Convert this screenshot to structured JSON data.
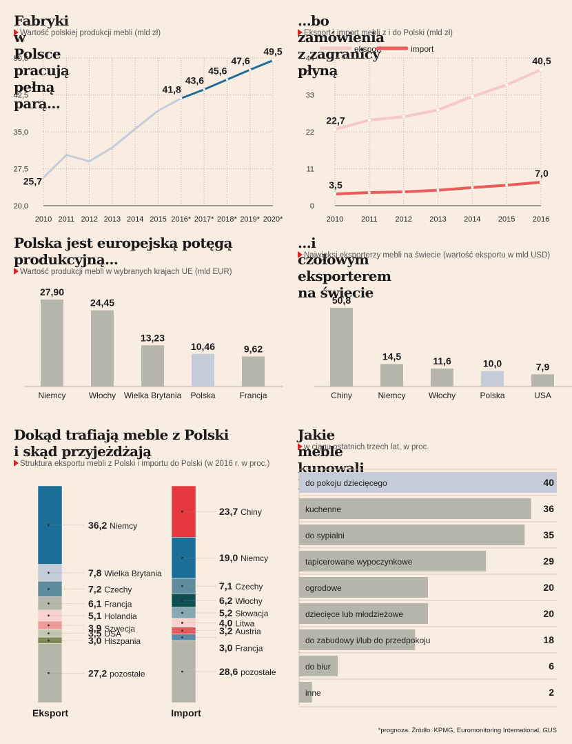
{
  "chart_data": [
    {
      "type": "line",
      "title": "Fabryki w Polsce pracują pełną parą...",
      "subtitle": "Wartość polskiej produkcji mebli (mld zł)",
      "x": [
        "2010",
        "2011",
        "2012",
        "2013",
        "2014",
        "2015",
        "2016*",
        "2017*",
        "2018*",
        "2019*",
        "2020*"
      ],
      "series": [
        {
          "values": [
            25.7,
            30.3,
            29.0,
            31.8,
            35.6,
            39.3,
            41.8,
            43.6,
            45.6,
            47.6,
            49.5
          ],
          "labels": [
            "25,7",
            "",
            "",
            "",
            "",
            "",
            "41,8",
            "43,6",
            "45,6",
            "47,6",
            "49,5"
          ],
          "color_actual": "#c5cbd9",
          "color_forecast": "#1f6e99",
          "forecast_from_index": 6
        }
      ],
      "yticks": [
        "20,0",
        "27,5",
        "35,0",
        "42,5",
        "50,0"
      ],
      "ylim": [
        20,
        50
      ],
      "grid": true
    },
    {
      "type": "line",
      "title": "...bo zamówienia z zagranicy płyną",
      "subtitle": "Eksport i import mebli z i do Polski (mld zł)",
      "x": [
        "2010",
        "2011",
        "2012",
        "2013",
        "2014",
        "2015",
        "2016"
      ],
      "series": [
        {
          "name": "eksport",
          "values": [
            22.7,
            25.5,
            26.5,
            28.5,
            32.5,
            36.0,
            40.5
          ],
          "labels": [
            "22,7",
            "",
            "",
            "",
            "",
            "",
            "40,5"
          ],
          "color": "#f6c9c6"
        },
        {
          "name": "import",
          "values": [
            3.5,
            3.9,
            4.1,
            4.6,
            5.4,
            6.1,
            7.0
          ],
          "labels": [
            "3,5",
            "",
            "",
            "",
            "",
            "",
            "7,0"
          ],
          "color": "#ea5b5a"
        }
      ],
      "yticks": [
        "0",
        "11",
        "22",
        "33",
        "44"
      ],
      "ylim": [
        0,
        44
      ],
      "grid": true,
      "legend": "top-left"
    },
    {
      "type": "bar",
      "title": "Polska jest europejską potęgą produkcyjną...",
      "subtitle": "Wartość produkcji mebli w wybranych krajach UE (mld EUR)",
      "categories": [
        "Niemcy",
        "Włochy",
        "Wielka Brytania",
        "Polska",
        "Francja"
      ],
      "values": [
        27.9,
        24.45,
        13.23,
        10.46,
        9.62
      ],
      "labels": [
        "27,90",
        "24,45",
        "13,23",
        "10,46",
        "9,62"
      ],
      "highlight": "Polska"
    },
    {
      "type": "bar",
      "title": "...i czołowym eksporterem na świecie",
      "subtitle": "Najwięksi eksporterzy mebli na świecie (wartość eksportu w mld USD)",
      "categories": [
        "Chiny",
        "Niemcy",
        "Włochy",
        "Polska",
        "USA"
      ],
      "values": [
        50.8,
        14.5,
        11.6,
        10.0,
        7.9
      ],
      "labels": [
        "50,8",
        "14,5",
        "11,6",
        "10,0",
        "7,9"
      ],
      "highlight": "Polska"
    },
    {
      "type": "bar",
      "stacked": true,
      "title": "Dokąd trafiają meble z Polski i skąd przyjeżdżają",
      "subtitle": "Struktura eksportu mebli z Polski i importu do Polski (w 2016 r. w proc.)",
      "stacks": [
        {
          "name": "Eksport",
          "segments": [
            {
              "label": "Niemcy",
              "value": 36.2,
              "text": "36,2",
              "color": "#1a6e98"
            },
            {
              "label": "Wielka Brytania",
              "value": 7.8,
              "text": "7,8",
              "color": "#c5cbd9"
            },
            {
              "label": "Czechy",
              "value": 7.2,
              "text": "7,2",
              "color": "#5f8c9d"
            },
            {
              "label": "Francja",
              "value": 6.1,
              "text": "6,1",
              "color": "#b7b6ab"
            },
            {
              "label": "Holandia",
              "value": 5.1,
              "text": "5,1",
              "color": "#f8d2d0"
            },
            {
              "label": "Szwecja",
              "value": 3.9,
              "text": "3,9",
              "color": "#ef9b99"
            },
            {
              "label": "USA",
              "value": 3.5,
              "text": "3,5",
              "color": "#c2c9b0"
            },
            {
              "label": "Hiszpania",
              "value": 3.0,
              "text": "3,0",
              "color": "#7f8957"
            },
            {
              "label": "pozostałe",
              "value": 27.2,
              "text": "27,2",
              "color": "#b7b6ab"
            }
          ]
        },
        {
          "name": "Import",
          "segments": [
            {
              "label": "Chiny",
              "value": 23.7,
              "text": "23,7",
              "color": "#e5373d"
            },
            {
              "label": "Niemcy",
              "value": 19.0,
              "text": "19,0",
              "color": "#1a6e98"
            },
            {
              "label": "Czechy",
              "value": 7.1,
              "text": "7,1",
              "color": "#5f8c9d"
            },
            {
              "label": "Włochy",
              "value": 6.2,
              "text": "6,2",
              "color": "#0c4f52"
            },
            {
              "label": "Słowacja",
              "value": 5.2,
              "text": "5,2",
              "color": "#88a9b2"
            },
            {
              "label": "Litwa",
              "value": 4.0,
              "text": "4,0",
              "color": "#f8d2d0"
            },
            {
              "label": "Austria",
              "value": 3.2,
              "text": "3,2",
              "color": "#e35a5c"
            },
            {
              "label": "Francja",
              "value": 3.0,
              "text": "3,0",
              "color": "#5a8ba6"
            },
            {
              "label": "pozostałe",
              "value": 28.6,
              "text": "28,6",
              "color": "#b7b6ab"
            }
          ]
        }
      ]
    },
    {
      "type": "bar",
      "orientation": "horizontal",
      "title": "Jakie meble kupowali Polacy",
      "subtitle": "w ciągu ostatnich trzech lat, w proc.",
      "categories": [
        "do pokoju dziecięcego",
        "kuchenne",
        "do sypialni",
        "tapicerowane wypoczynkowe",
        "ogrodowe",
        "dziecięce lub młodzieżowe",
        "do zabudowy i/lub do przedpokoju",
        "do biur",
        "inne"
      ],
      "values": [
        40,
        36,
        35,
        29,
        20,
        20,
        18,
        6,
        2
      ],
      "xlim": [
        0,
        40
      ],
      "highlight": "do pokoju dziecięcego"
    }
  ],
  "footer": "*prognoza. Źródło: KPMG, Euromonitoring International, GUS",
  "colors": {
    "background": "#f9ede1",
    "bar": "#b7b6ab",
    "highlight": "#c5cbd9",
    "accent": "#d8232a"
  }
}
